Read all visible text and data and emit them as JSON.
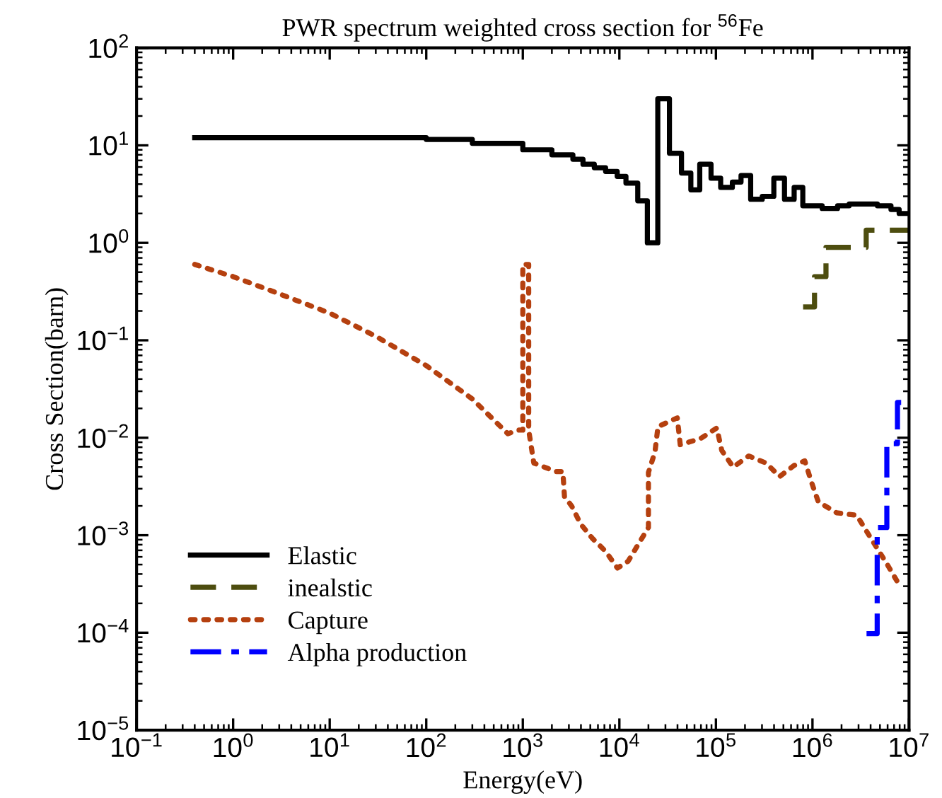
{
  "chart_data": {
    "type": "step",
    "title": "PWR spectrum weighted cross section for $^{56}$Fe",
    "xlabel": "Energy(eV)",
    "ylabel": "Cross Section(barn)",
    "log": "xy",
    "grid": false,
    "legend": "bottom left",
    "xlim": [
      0.1,
      10000000
    ],
    "ylim": [
      1e-05,
      100
    ],
    "xticks": [
      {
        "value": 0.1,
        "label": "10$^{−1}$"
      },
      {
        "value": 1,
        "label": "10$^{0}$"
      },
      {
        "value": 10,
        "label": "10$^{1}$"
      },
      {
        "value": 100,
        "label": "10$^{2}$"
      },
      {
        "value": 1000,
        "label": "10$^{3}$"
      },
      {
        "value": 10000,
        "label": "10$^{4}$"
      },
      {
        "value": 100000,
        "label": "10$^{5}$"
      },
      {
        "value": 1000000,
        "label": "10$^{6}$"
      },
      {
        "value": 10000000,
        "label": "10$^{7}$"
      }
    ],
    "yticks": [
      {
        "value": 1e-05,
        "label": "10$^{−5}$"
      },
      {
        "value": 0.0001,
        "label": "10$^{−4}$"
      },
      {
        "value": 0.001,
        "label": "10$^{−3}$"
      },
      {
        "value": 0.01,
        "label": "10$^{−2}$"
      },
      {
        "value": 0.1,
        "label": "10$^{−1}$"
      },
      {
        "value": 1,
        "label": "10$^{0}$"
      },
      {
        "value": 10,
        "label": "10$^{1}$"
      },
      {
        "value": 100,
        "label": "10$^{2}$"
      }
    ],
    "series": [
      {
        "name": "Elastic",
        "color": "#000000",
        "line_style": "solid",
        "x": [
          0.4,
          10,
          100,
          300,
          1000,
          2000,
          3300,
          4200,
          5500,
          7200,
          9500,
          11700,
          15500,
          19500,
          25000,
          33000,
          44000,
          55000,
          68000,
          89000,
          112000,
          148000,
          182000,
          229000,
          302000,
          398000,
          513000,
          646000,
          794000,
          1260000,
          1820000,
          2400000,
          3300000,
          4700000,
          6500000,
          7900000,
          10000000
        ],
        "values": [
          12,
          12,
          11.5,
          10.5,
          9,
          8,
          7.2,
          6.4,
          5.9,
          5.4,
          4.8,
          4.1,
          2.7,
          1.0,
          30,
          8.3,
          5.2,
          3.5,
          6.4,
          4.6,
          3.7,
          4.2,
          4.9,
          2.8,
          3.0,
          4.6,
          2.8,
          3.7,
          2.4,
          2.25,
          2.4,
          2.5,
          2.5,
          2.4,
          2.2,
          2.0,
          2.0
        ]
      },
      {
        "name": "inealstic",
        "color": "#4d4d0f",
        "line_style": "dashed",
        "x": [
          800000,
          1050000,
          1380000,
          3600000,
          10000000
        ],
        "values": [
          0.22,
          0.45,
          0.9,
          1.35,
          1.35
        ]
      },
      {
        "name": "Capture",
        "type": "line",
        "color": "#b5400f",
        "line_style": "dotted",
        "x": [
          0.4,
          1,
          3,
          10,
          30,
          100,
          300,
          700,
          900,
          1000,
          1000,
          1150,
          1150,
          1300,
          2200,
          2600,
          2700,
          3200,
          3980,
          5250,
          7240,
          9550,
          12300,
          15500,
          20000,
          20000,
          20000,
          23400,
          25100,
          39800,
          42700,
          69200,
          102000,
          115000,
          151000,
          219000,
          331000,
          457000,
          646000,
          832000,
          977000,
          1150000,
          1780000,
          2880000,
          3630000,
          6030000,
          7760000
        ],
        "values": [
          0.6,
          0.45,
          0.3,
          0.19,
          0.11,
          0.055,
          0.025,
          0.011,
          0.012,
          0.012,
          0.6,
          0.6,
          0.012,
          0.0055,
          0.0045,
          0.0045,
          0.0025,
          0.002,
          0.0013,
          0.00093,
          0.00068,
          0.00046,
          0.00054,
          0.00079,
          0.0012,
          0.0023,
          0.0044,
          0.0072,
          0.013,
          0.016,
          0.0085,
          0.0098,
          0.0126,
          0.0074,
          0.005,
          0.0065,
          0.0055,
          0.004,
          0.0052,
          0.0058,
          0.0035,
          0.0022,
          0.0017,
          0.0016,
          0.0011,
          0.00049,
          0.00032
        ]
      },
      {
        "name": "Alpha production",
        "color": "#0000ff",
        "line_style": "dashdot",
        "x": [
          3630000,
          4680000,
          5890000,
          7590000,
          10000000
        ],
        "values": [
          9.8e-05,
          0.0012,
          0.0087,
          0.023,
          0.023
        ]
      }
    ]
  }
}
